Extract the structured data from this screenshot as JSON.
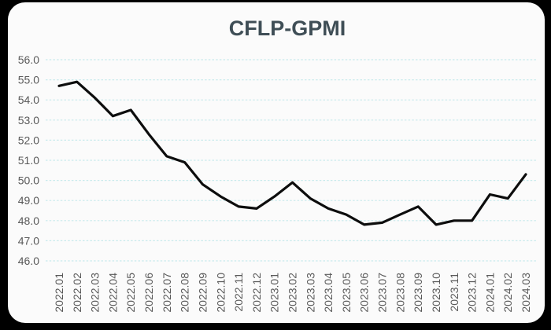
{
  "page": {
    "frame_background": "#000000"
  },
  "card": {
    "background": "#FBFBFB"
  },
  "chart_data": {
    "type": "line",
    "title": "CFLP-GPMI",
    "categories": [
      "2022.01",
      "2022.02",
      "2022.03",
      "2022.04",
      "2022.05",
      "2022.06",
      "2022.07",
      "2022.08",
      "2022.09",
      "2022.10",
      "2022.11",
      "2022.12",
      "2023.01",
      "2023.02",
      "2023.03",
      "2023.04",
      "2023.05",
      "2023.06",
      "2023.07",
      "2023.08",
      "2023.09",
      "2023.10",
      "2023.11",
      "2023.12",
      "2024.01",
      "2024.02",
      "2024.03"
    ],
    "values": [
      54.7,
      54.9,
      54.1,
      53.2,
      53.5,
      52.3,
      51.2,
      50.9,
      49.8,
      49.2,
      48.7,
      48.6,
      49.2,
      49.9,
      49.1,
      48.6,
      48.3,
      47.8,
      47.9,
      48.3,
      48.7,
      47.8,
      48.0,
      48.0,
      49.3,
      49.1,
      50.3
    ],
    "xlabel": "",
    "ylabel": "",
    "ylim": [
      46.0,
      56.0
    ],
    "ytick_step": 1.0,
    "ytick_labels": [
      "56.0",
      "55.0",
      "54.0",
      "53.0",
      "52.0",
      "51.0",
      "50.0",
      "49.0",
      "48.0",
      "47.0",
      "46.0"
    ],
    "grid": "horizontal-dashed",
    "legend": "none",
    "colors": {
      "line": "#0D0D0D",
      "gridline": "#C8EAEC",
      "tick_label": "#595959",
      "title": "#3F4E56"
    }
  }
}
